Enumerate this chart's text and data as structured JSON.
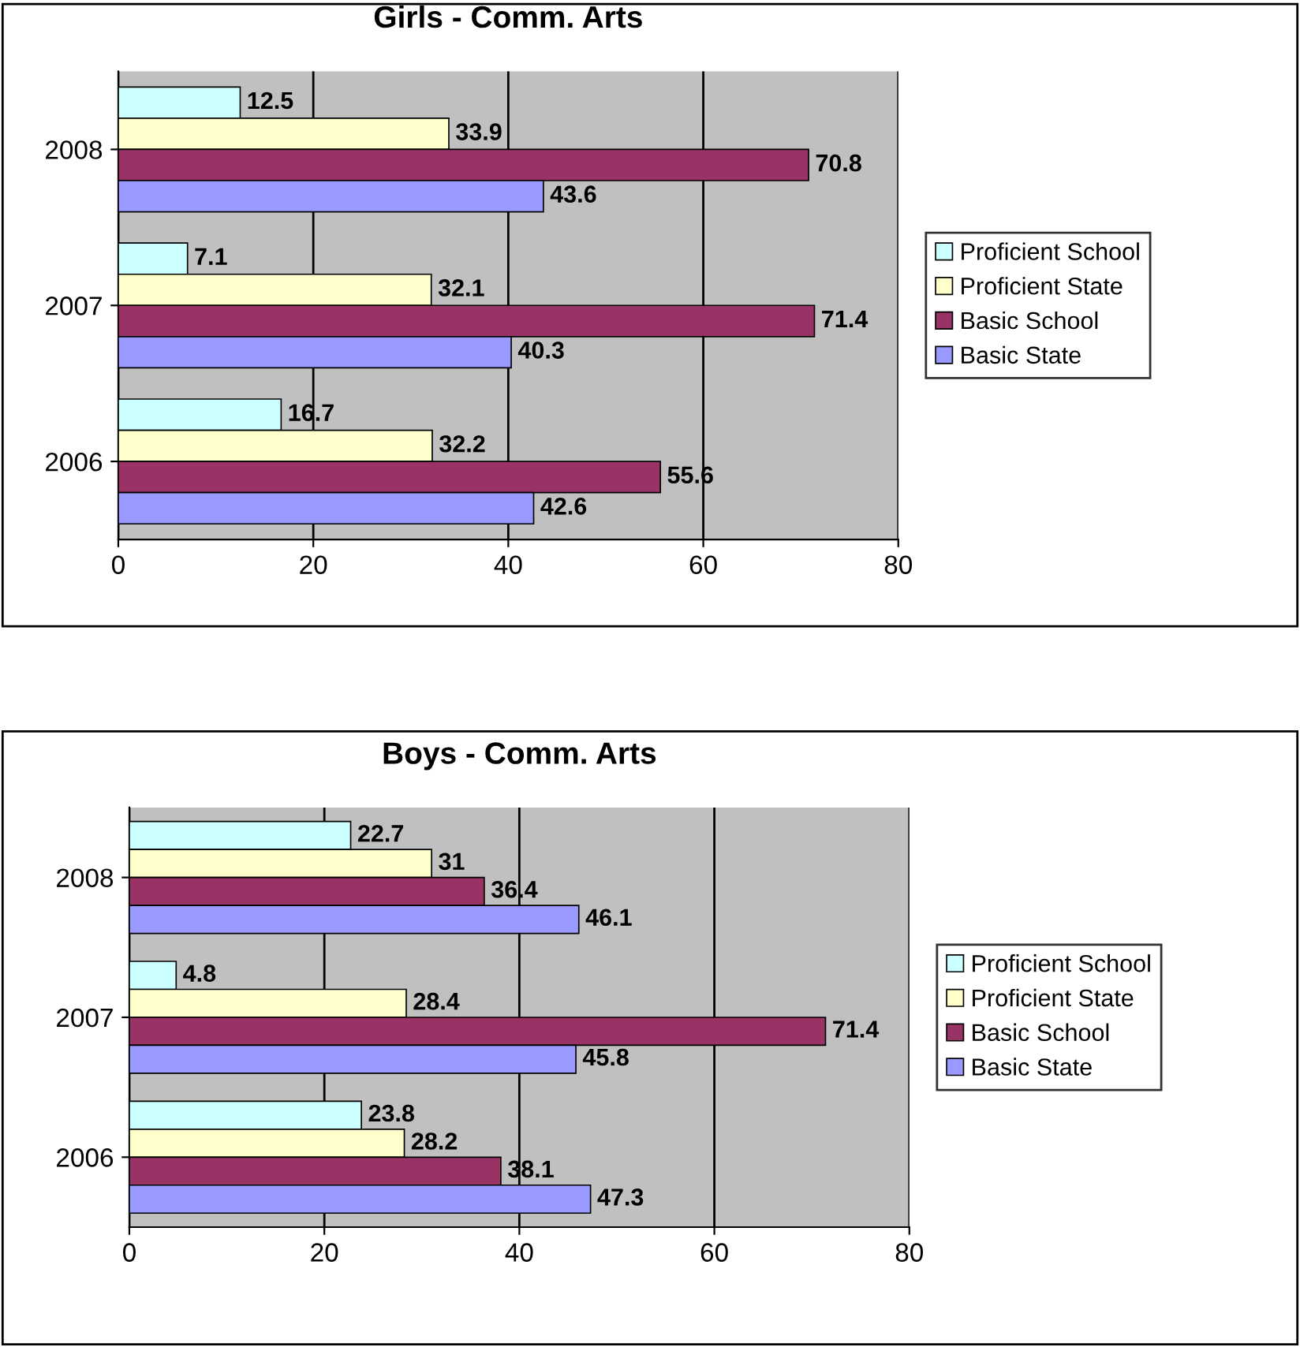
{
  "chart_data": [
    {
      "type": "bar",
      "orientation": "horizontal",
      "title": "Girls - Comm. Arts",
      "categories": [
        "2008",
        "2007",
        "2006"
      ],
      "series": [
        {
          "name": "Proficient School",
          "color": "#ccffff",
          "values": [
            12.5,
            7.1,
            16.7
          ]
        },
        {
          "name": "Proficient State",
          "color": "#ffffcc",
          "values": [
            33.9,
            32.1,
            32.2
          ]
        },
        {
          "name": "Basic School",
          "color": "#993366",
          "values": [
            70.8,
            71.4,
            55.6
          ]
        },
        {
          "name": "Basic State",
          "color": "#9999ff",
          "values": [
            43.6,
            40.3,
            42.6
          ]
        }
      ],
      "xlim": [
        0,
        80
      ],
      "xticks": [
        0,
        20,
        40,
        60,
        80
      ],
      "grid": "x",
      "legend": "right",
      "data_labels": true
    },
    {
      "type": "bar",
      "orientation": "horizontal",
      "title": "Boys - Comm. Arts",
      "categories": [
        "2008",
        "2007",
        "2006"
      ],
      "series": [
        {
          "name": "Proficient School",
          "color": "#ccffff",
          "values": [
            22.7,
            4.8,
            23.8
          ]
        },
        {
          "name": "Proficient State",
          "color": "#ffffcc",
          "values": [
            31,
            28.4,
            28.2
          ]
        },
        {
          "name": "Basic School",
          "color": "#993366",
          "values": [
            36.4,
            71.4,
            38.1
          ]
        },
        {
          "name": "Basic State",
          "color": "#9999ff",
          "values": [
            46.1,
            45.8,
            47.3
          ]
        }
      ],
      "xlim": [
        0,
        80
      ],
      "xticks": [
        0,
        20,
        40,
        60,
        80
      ],
      "grid": "x",
      "legend": "right",
      "data_labels": true
    }
  ]
}
